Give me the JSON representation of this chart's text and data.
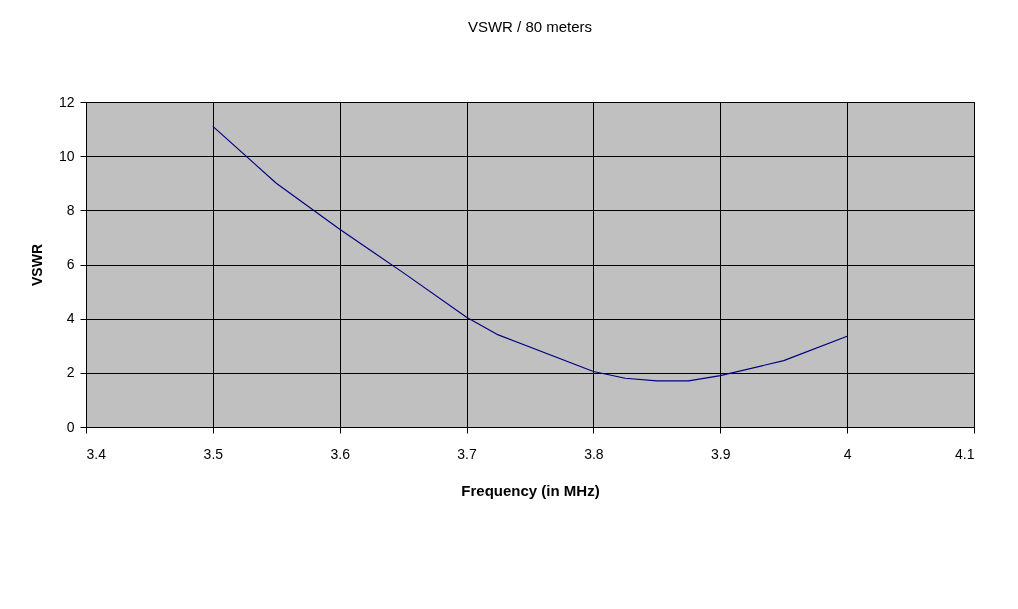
{
  "chart_data": {
    "type": "line",
    "title": "VSWR / 80 meters",
    "xlabel": "Frequency (in MHz)",
    "ylabel": "VSWR",
    "x": [
      3.5,
      3.55,
      3.6,
      3.65,
      3.7,
      3.725,
      3.8,
      3.825,
      3.85,
      3.875,
      3.9,
      3.95,
      4.0
    ],
    "series": [
      {
        "color": "#000080",
        "values": [
          11.1,
          9.0,
          7.3,
          5.7,
          4.05,
          3.4,
          2.05,
          1.8,
          1.7,
          1.7,
          1.9,
          2.45,
          3.35
        ]
      }
    ],
    "xlim": [
      3.4,
      4.1
    ],
    "xticks": [
      3.4,
      3.5,
      3.6,
      3.7,
      3.8,
      3.9,
      4,
      4.1
    ],
    "ylim": [
      0,
      12
    ],
    "yticks": [
      0,
      2,
      4,
      6,
      8,
      10,
      12
    ],
    "grid": true,
    "marker": "none",
    "line_style": "solid"
  }
}
